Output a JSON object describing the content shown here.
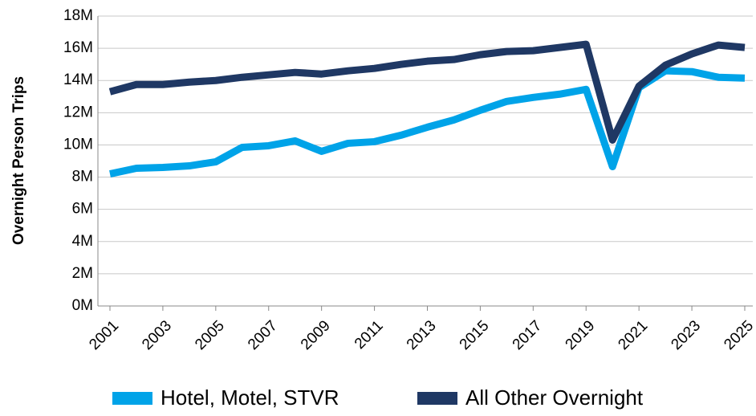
{
  "chart_data": {
    "type": "line",
    "y_label": "Overnight Person Trips",
    "x": [
      2001,
      2002,
      2003,
      2004,
      2005,
      2006,
      2007,
      2008,
      2009,
      2010,
      2011,
      2012,
      2013,
      2014,
      2015,
      2016,
      2017,
      2018,
      2019,
      2020,
      2021,
      2022,
      2023,
      2024,
      2025
    ],
    "series": [
      {
        "name": "Hotel, Motel, STVR",
        "color": "#00a3e8",
        "values": [
          8200000,
          8550000,
          8600000,
          8700000,
          8950000,
          9850000,
          9950000,
          10250000,
          9600000,
          10100000,
          10200000,
          10600000,
          11100000,
          11550000,
          12150000,
          12700000,
          12950000,
          13150000,
          13450000,
          8650000,
          13550000,
          14600000,
          14550000,
          14200000,
          14150000
        ]
      },
      {
        "name": "All Other Overnight",
        "color": "#1f3864",
        "values": [
          13300000,
          13750000,
          13750000,
          13900000,
          14000000,
          14200000,
          14350000,
          14500000,
          14400000,
          14600000,
          14750000,
          15000000,
          15200000,
          15300000,
          15600000,
          15800000,
          15850000,
          16050000,
          16250000,
          10300000,
          13650000,
          14950000,
          15650000,
          16200000,
          16050000
        ]
      }
    ],
    "xlim": [
      2001,
      2025
    ],
    "xticks": [
      2001,
      2003,
      2005,
      2007,
      2009,
      2011,
      2013,
      2015,
      2017,
      2019,
      2021,
      2023,
      2025
    ],
    "ylim": [
      0,
      18000000
    ],
    "yticks": [
      {
        "value": 0,
        "label": "0M"
      },
      {
        "value": 2000000,
        "label": "2M"
      },
      {
        "value": 4000000,
        "label": "4M"
      },
      {
        "value": 6000000,
        "label": "6M"
      },
      {
        "value": 8000000,
        "label": "8M"
      },
      {
        "value": 10000000,
        "label": "10M"
      },
      {
        "value": 12000000,
        "label": "12M"
      },
      {
        "value": 14000000,
        "label": "14M"
      },
      {
        "value": 16000000,
        "label": "16M"
      },
      {
        "value": 18000000,
        "label": "18M"
      }
    ],
    "grid": true,
    "legend": "bottom"
  }
}
